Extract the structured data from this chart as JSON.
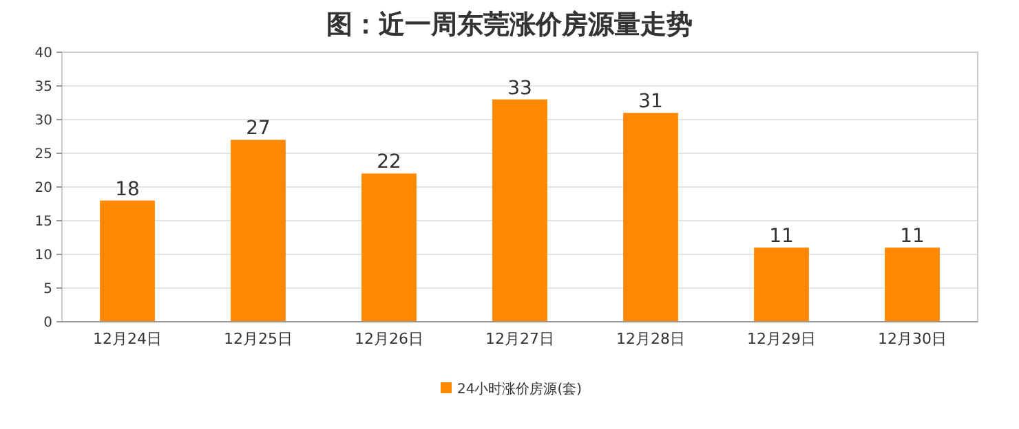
{
  "chart_data": {
    "type": "bar",
    "title": "图：近一周东莞涨价房源量走势",
    "categories": [
      "12月24日",
      "12月25日",
      "12月26日",
      "12月27日",
      "12月28日",
      "12月29日",
      "12月30日"
    ],
    "series": [
      {
        "name": "24小时涨价房源(套)",
        "color": "#ff8800",
        "values": [
          18,
          27,
          22,
          33,
          31,
          11,
          11
        ]
      }
    ],
    "ylim": [
      0,
      40
    ],
    "yticks": [
      0,
      5,
      10,
      15,
      20,
      25,
      30,
      35,
      40
    ],
    "grid": "y",
    "legend": "bottom",
    "data_labels": true
  }
}
